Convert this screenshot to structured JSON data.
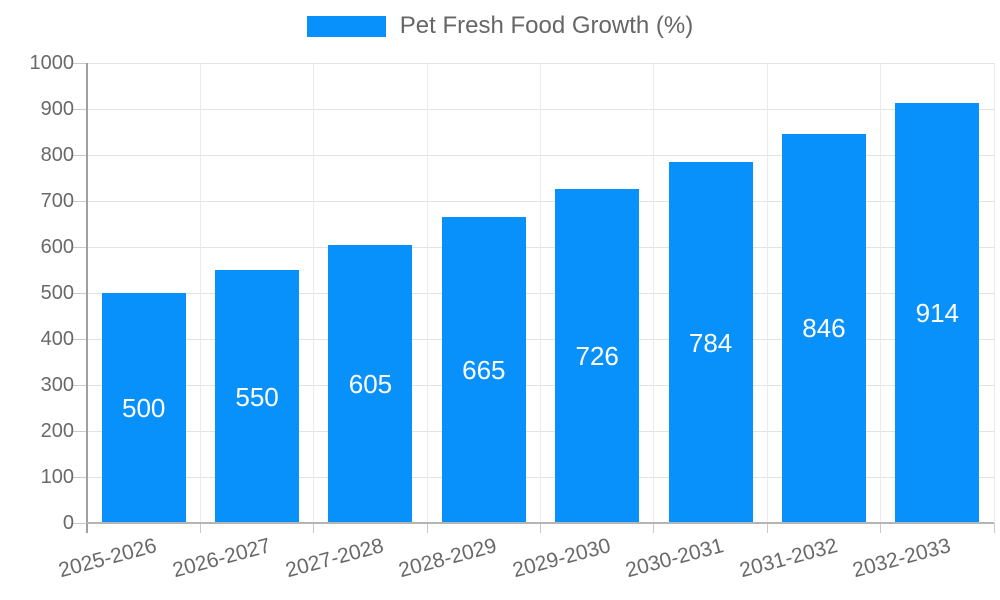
{
  "legend": {
    "label": "Pet Fresh Food Growth (%)"
  },
  "chart_data": {
    "type": "bar",
    "title": "Pet Fresh Food Growth (%)",
    "categories": [
      "2025-2026",
      "2026-2027",
      "2027-2028",
      "2028-2029",
      "2029-2030",
      "2030-2031",
      "2031-2032",
      "2032-2033"
    ],
    "series": [
      {
        "name": "Pet Fresh Food Growth (%)",
        "values": [
          500,
          550,
          605,
          665,
          726,
          784,
          846,
          914
        ]
      }
    ],
    "xlabel": "",
    "ylabel": "",
    "ylim": [
      0,
      1000
    ],
    "ytick_step": 100,
    "ytick_labels": [
      "0",
      "100",
      "200",
      "300",
      "400",
      "500",
      "600",
      "700",
      "800",
      "900",
      "1000"
    ],
    "grid": true,
    "legend_position": "top",
    "bar_color": "#0991fb",
    "value_label_position": "inside-center",
    "value_label_color": "#ffffff",
    "axis_text_color": "#696969",
    "legend_text_color": "#666666",
    "x_label_rotation_deg": -15
  }
}
